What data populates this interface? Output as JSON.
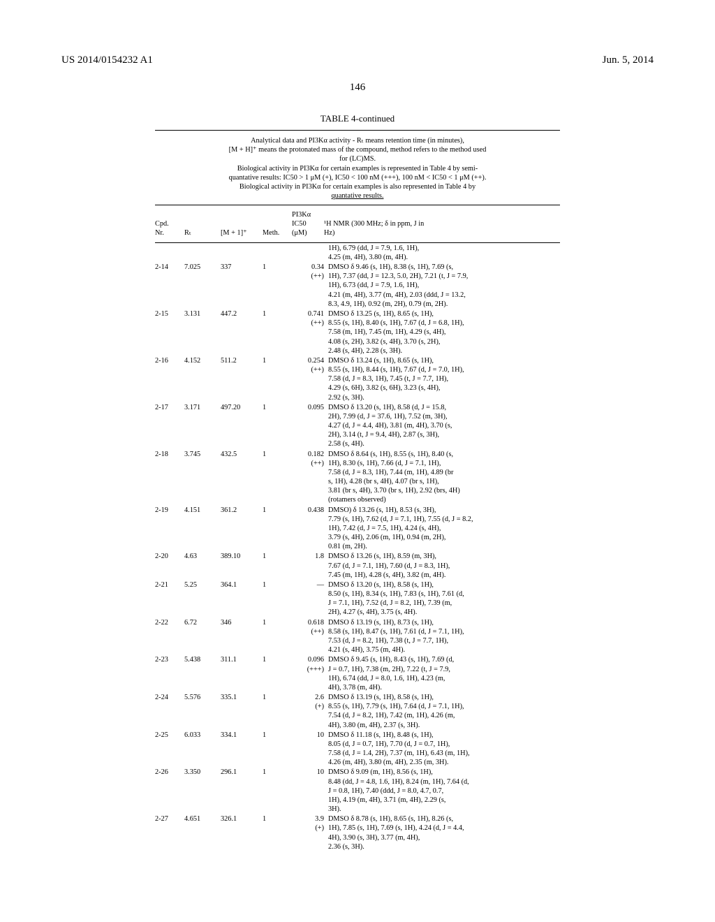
{
  "header": {
    "pub_number": "US 2014/0154232 A1",
    "pub_date": "Jun. 5, 2014",
    "page_number": "146"
  },
  "table": {
    "title": "TABLE 4-continued",
    "caption_lines": [
      "Analytical data and PI3Kα activity - Rₜ means retention time (in minutes),",
      "[M + H]⁺ means the protonated mass of the compound, method refers to the method used",
      "for (LC)MS.",
      "Biological activity in PI3Kα for certain examples is represented in Table 4 by semi-",
      "quantative results: IC50 > 1 μM (+), IC50 < 100 nM (+++), 100 nM < IC50 < 1 μM (++).",
      "Biological activity in PI3Kα for certain examples is also represented in Table 4 by",
      "quantative results."
    ],
    "columns": {
      "cpd": "Cpd.\nNr.",
      "rt": "Rₜ",
      "m1": "[M + 1]⁺",
      "meth": "Meth.",
      "ic50": "PI3Kα\nIC50\n(μM)",
      "nmr": "¹H NMR (300 MHz; δ in ppm, J in\nHz)"
    },
    "pre_rows": [
      "1H), 6.79 (dd, J = 7.9, 1.6, 1H),",
      "4.25 (m, 4H), 3.80 (m, 4H)."
    ],
    "rows": [
      {
        "cpd": "2-14",
        "rt": "7.025",
        "m1": "337",
        "meth": "1",
        "ic50": [
          "0.34",
          "(++)"
        ],
        "nmr": [
          "DMSO δ 9.46 (s, 1H), 8.38 (s, 1H), 7.69 (s,",
          "1H), 7.37 (dd, J = 12.3, 5.0, 2H), 7.21 (t, J = 7.9,",
          "1H), 6.73 (dd, J = 7.9, 1.6, 1H),",
          "4.21 (m, 4H), 3.77 (m, 4H), 2.03 (ddd, J = 13.2,",
          "8.3, 4.9, 1H), 0.92 (m, 2H), 0.79 (m, 2H)."
        ]
      },
      {
        "cpd": "2-15",
        "rt": "3.131",
        "m1": "447.2",
        "meth": "1",
        "ic50": [
          "0.741",
          "(++)"
        ],
        "nmr": [
          "DMSO δ 13.25 (s, 1H), 8.65 (s, 1H),",
          "8.55 (s, 1H), 8.40 (s, 1H), 7.67 (d, J = 6.8, 1H),",
          "7.58 (m, 1H), 7.45 (m, 1H), 4.29 (s, 4H),",
          "4.08 (s, 2H), 3.82 (s, 4H), 3.70 (s, 2H),",
          "2.48 (s, 4H), 2.28 (s, 3H)."
        ]
      },
      {
        "cpd": "2-16",
        "rt": "4.152",
        "m1": "511.2",
        "meth": "1",
        "ic50": [
          "0.254",
          "(++)"
        ],
        "nmr": [
          "DMSO δ 13.24 (s, 1H), 8.65 (s, 1H),",
          "8.55 (s, 1H), 8.44 (s, 1H), 7.67 (d, J = 7.0, 1H),",
          "7.58 (d, J = 8.3, 1H), 7.45 (t, J = 7.7, 1H),",
          "4.29 (s, 6H), 3.82 (s, 6H), 3.23 (s, 4H),",
          "2.92 (s, 3H)."
        ]
      },
      {
        "cpd": "2-17",
        "rt": "3.171",
        "m1": "497.20",
        "meth": "1",
        "ic50": [
          "0.095"
        ],
        "nmr": [
          "DMSO δ 13.20 (s, 1H), 8.58 (d, J = 15.8,",
          "2H), 7.99 (d, J = 37.6, 1H), 7.52 (m, 3H),",
          "4.27 (d, J = 4.4, 4H), 3.81 (m, 4H), 3.70 (s,",
          "2H), 3.14 (t, J = 9.4, 4H), 2.87 (s, 3H),",
          "2.58 (s, 4H)."
        ]
      },
      {
        "cpd": "2-18",
        "rt": "3.745",
        "m1": "432.5",
        "meth": "1",
        "ic50": [
          "0.182",
          "(++)"
        ],
        "nmr": [
          "DMSO δ 8.64 (s, 1H), 8.55 (s, 1H), 8.40 (s,",
          "1H), 8.30 (s, 1H), 7.66 (d, J = 7.1, 1H),",
          "7.58 (d, J = 8.3, 1H), 7.44 (m, 1H), 4.89 (br",
          "s, 1H), 4.28 (br s, 4H), 4.07 (br s, 1H),",
          "3.81 (br s, 4H), 3.70 (br s, 1H), 2.92 (brs, 4H)",
          "(rotamers observed)"
        ]
      },
      {
        "cpd": "2-19",
        "rt": "4.151",
        "m1": "361.2",
        "meth": "1",
        "ic50": [
          "0.438"
        ],
        "nmr": [
          "DMSO) δ 13.26 (s, 1H), 8.53 (s, 3H),",
          "7.79 (s, 1H), 7.62 (d, J = 7.1, 1H), 7.55 (d, J = 8.2,",
          "1H), 7.42 (d, J = 7.5, 1H), 4.24 (s, 4H),",
          "3.79 (s, 4H), 2.06 (m, 1H), 0.94 (m, 2H),",
          "0.81 (m, 2H)."
        ]
      },
      {
        "cpd": "2-20",
        "rt": "4.63",
        "m1": "389.10",
        "meth": "1",
        "ic50": [
          "1.8"
        ],
        "nmr": [
          "DMSO δ 13.26 (s, 1H), 8.59 (m, 3H),",
          "7.67 (d, J = 7.1, 1H), 7.60 (d, J = 8.3, 1H),",
          "7.45 (m, 1H), 4.28 (s, 4H), 3.82 (m, 4H)."
        ]
      },
      {
        "cpd": "2-21",
        "rt": "5.25",
        "m1": "364.1",
        "meth": "1",
        "ic50": [
          "—"
        ],
        "nmr": [
          "DMSO δ 13.20 (s, 1H), 8.58 (s, 1H),",
          "8.50 (s, 1H), 8.34 (s, 1H), 7.83 (s, 1H), 7.61 (d,",
          "J = 7.1, 1H), 7.52 (d, J = 8.2, 1H), 7.39 (m,",
          "2H), 4.27 (s, 4H), 3.75 (s, 4H)."
        ]
      },
      {
        "cpd": "2-22",
        "rt": "6.72",
        "m1": "346",
        "meth": "1",
        "ic50": [
          "0.618",
          "(++)"
        ],
        "nmr": [
          "DMSO δ 13.19 (s, 1H), 8.73 (s, 1H),",
          "8.58 (s, 1H), 8.47 (s, 1H), 7.61 (d, J = 7.1, 1H),",
          "7.53 (d, J = 8.2, 1H), 7.38 (t, J = 7.7, 1H),",
          "4.21 (s, 4H), 3.75 (m, 4H)."
        ]
      },
      {
        "cpd": "2-23",
        "rt": "5.438",
        "m1": "311.1",
        "meth": "1",
        "ic50": [
          "0.096",
          "(+++)"
        ],
        "nmr": [
          "DMSO δ 9.45 (s, 1H), 8.43 (s, 1H), 7.69 (d,",
          "J = 0.7, 1H), 7.38 (m, 2H), 7.22 (t, J = 7.9,",
          "1H), 6.74 (dd, J = 8.0, 1.6, 1H), 4.23 (m,",
          "4H), 3.78 (m, 4H)."
        ]
      },
      {
        "cpd": "2-24",
        "rt": "5.576",
        "m1": "335.1",
        "meth": "1",
        "ic50": [
          "2.6",
          "(+)"
        ],
        "nmr": [
          "DMSO δ 13.19 (s, 1H), 8.58 (s, 1H),",
          "8.55 (s, 1H), 7.79 (s, 1H), 7.64 (d, J = 7.1, 1H),",
          "7.54 (d, J = 8.2, 1H), 7.42 (m, 1H), 4.26 (m,",
          "4H), 3.80 (m, 4H), 2.37 (s, 3H)."
        ]
      },
      {
        "cpd": "2-25",
        "rt": "6.033",
        "m1": "334.1",
        "meth": "1",
        "ic50": [
          "10"
        ],
        "nmr": [
          "DMSO δ 11.18 (s, 1H), 8.48 (s, 1H),",
          "8.05 (d, J = 0.7, 1H), 7.70 (d, J = 0.7, 1H),",
          "7.58 (d, J = 1.4, 2H), 7.37 (m, 1H), 6.43 (m, 1H),",
          "4.26 (m, 4H), 3.80 (m, 4H), 2.35 (m, 3H)."
        ]
      },
      {
        "cpd": "2-26",
        "rt": "3.350",
        "m1": "296.1",
        "meth": "1",
        "ic50": [
          "10"
        ],
        "nmr": [
          "DMSO δ 9.09 (m, 1H), 8.56 (s, 1H),",
          "8.48 (dd, J = 4.8, 1.6, 1H), 8.24 (m, 1H), 7.64 (d,",
          "J = 0.8, 1H), 7.40 (ddd, J = 8.0, 4.7, 0.7,",
          "1H), 4.19 (m, 4H), 3.71 (m, 4H), 2.29 (s,",
          "3H)."
        ]
      },
      {
        "cpd": "2-27",
        "rt": "4.651",
        "m1": "326.1",
        "meth": "1",
        "ic50": [
          "3.9",
          "(+)"
        ],
        "nmr": [
          "DMSO δ 8.78 (s, 1H), 8.65 (s, 1H), 8.26 (s,",
          "1H), 7.85 (s, 1H), 7.69 (s, 1H), 4.24 (d, J = 4.4,",
          "4H), 3.90 (s, 3H), 3.77 (m, 4H),",
          "2.36 (s, 3H)."
        ]
      }
    ]
  }
}
